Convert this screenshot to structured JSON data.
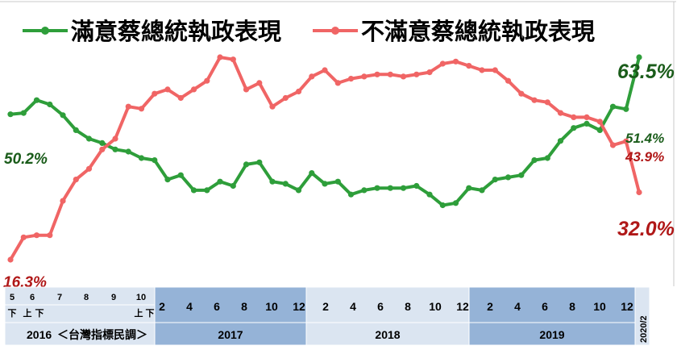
{
  "chart_data": {
    "type": "line",
    "title": "",
    "xlabel": "",
    "ylabel": "",
    "ylim": [
      10,
      70
    ],
    "grid": false,
    "legend": {
      "placement": "top",
      "entries": [
        "滿意蔡總統執政表現",
        "不滿意蔡總統執政表現"
      ]
    },
    "colors": {
      "satisfied": "#2e9e3a",
      "dissatisfied": "#f06565",
      "satisfied_label": "#1a5c1a",
      "dissatisfied_label": "#b01818",
      "axis_band_2016": "#dbe5f1",
      "axis_band_2017": "#95b3d7",
      "axis_band_2018": "#dbe5f1",
      "axis_band_2019": "#95b3d7"
    },
    "series": [
      {
        "name": "滿意蔡總統執政表現",
        "values": [
          50.2,
          50.5,
          53.5,
          52.5,
          50,
          46.5,
          44.5,
          43.5,
          42,
          41.5,
          40,
          39.5,
          35,
          36,
          32.5,
          32.5,
          34.5,
          33.5,
          38.5,
          39,
          34.5,
          34,
          32.5,
          36.5,
          34,
          34.5,
          31.5,
          32.5,
          33,
          33,
          33,
          33.5,
          31.5,
          29,
          29.5,
          33,
          32.5,
          35,
          35.5,
          36,
          39.5,
          40,
          44,
          47,
          48,
          46.5,
          52,
          51.4,
          63.5
        ]
      },
      {
        "name": "不滿意蔡總統執政表現",
        "values": [
          16.3,
          21.5,
          22,
          22,
          30,
          35,
          37.5,
          42,
          44.5,
          52,
          51.5,
          55,
          56,
          54,
          56,
          58,
          63.5,
          63,
          56,
          57.5,
          52,
          54,
          55.5,
          59,
          60.5,
          57.5,
          58.5,
          59,
          59.5,
          59.5,
          59,
          59.5,
          60,
          62,
          62.5,
          61.5,
          60.5,
          60.5,
          58,
          55,
          53.5,
          53,
          50.5,
          49.5,
          49.5,
          48.5,
          43,
          43.9,
          32.0
        ]
      }
    ],
    "end_labels": {
      "satisfied_start": "50.2%",
      "dissatisfied_start": "16.3%",
      "satisfied_end_prev": "51.4%",
      "satisfied_end": "63.5%",
      "dissatisfied_end_prev": "43.9%",
      "dissatisfied_end": "32.0%"
    },
    "x_axis": {
      "row1_2016": [
        "5",
        "6",
        "7",
        "8",
        "9",
        "10"
      ],
      "row2_2016": [
        "下",
        "上",
        "下",
        "上",
        "下"
      ],
      "months_2017": [
        "2",
        "4",
        "6",
        "8",
        "10",
        "12"
      ],
      "months_2018": [
        "2",
        "4",
        "6",
        "8",
        "10",
        "12"
      ],
      "months_2019": [
        "2",
        "4",
        "6",
        "8",
        "10",
        "12"
      ],
      "final": "2020/2",
      "year_2016": "2016",
      "source": "＜台灣指標民調＞",
      "year_2017": "2017",
      "year_2018": "2018",
      "year_2019": "2019"
    }
  }
}
